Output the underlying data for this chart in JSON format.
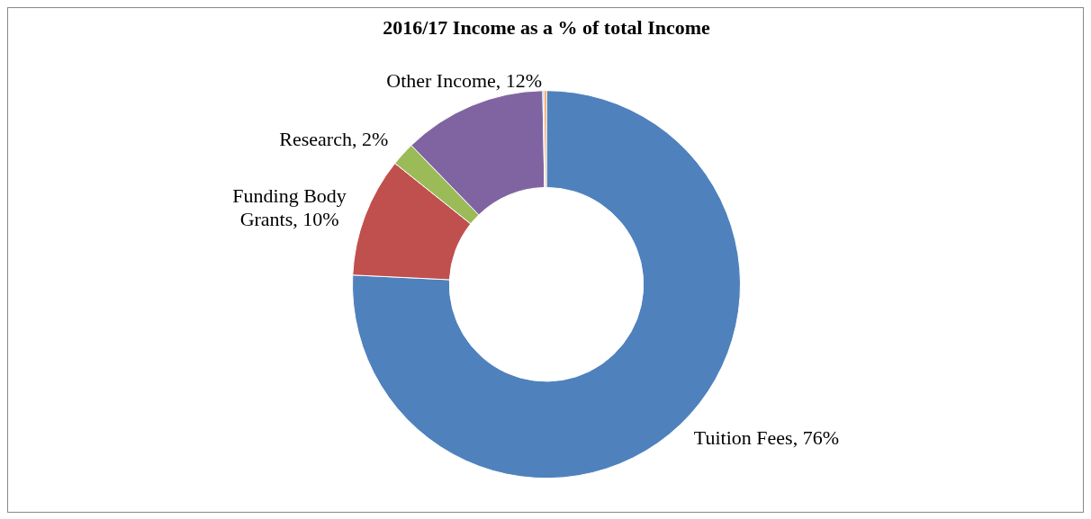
{
  "chart_data": {
    "type": "donut",
    "title": "2016/17 Income as a % of total Income",
    "categories": [
      "Tuition Fees, 76%",
      "Funding Body Grants, 10%",
      "Research, 2%",
      "Other Income, 12%",
      null,
      null
    ],
    "values": [
      76,
      10,
      2,
      12,
      0.1,
      0.2
    ],
    "colors": [
      "#4f81bd",
      "#c0504d",
      "#9bbb59",
      "#8064a2",
      "#4bacc6",
      "#f79646"
    ],
    "legend": false
  }
}
